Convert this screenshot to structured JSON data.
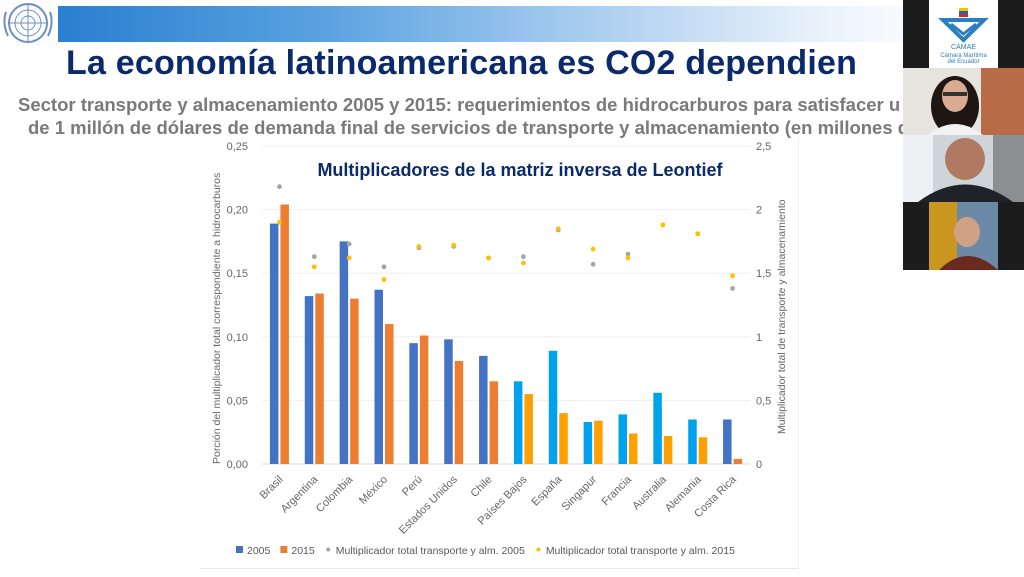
{
  "slide": {
    "title": "La economía latinoamericana es CO2 dependien",
    "subtitle_line1": "Sector transporte y almacenamiento 2005 y 2015: requerimientos de hidrocarburos para satisfacer u",
    "subtitle_line2": "de 1 millón de dólares de demanda final de servicios de transporte y almacenamiento (en millones d",
    "logo_icon": "un-emblem-icon",
    "colors": {
      "title": "#0b2a6b",
      "subtitle": "#7a7a7a",
      "banner": "#2a7fd0"
    }
  },
  "video_panel": {
    "logo_tile": {
      "name": "CAMAE",
      "line1": "Cámara Marítima",
      "line2": "del Ecuador"
    },
    "participants": [
      "participant-1",
      "participant-2",
      "participant-3"
    ]
  },
  "chart_data": {
    "type": "bar",
    "title": "Multiplicadores de la matriz inversa de Leontief",
    "xlabel": "",
    "ylabel": "Porción del multiplicador total correspondiente a hidrocarburos",
    "y2label": "Multiplicador total de transporte y almacenamiento",
    "ylim": [
      0,
      0.25
    ],
    "y2lim": [
      0,
      2.5
    ],
    "yticks": [
      "0,00",
      "0,05",
      "0,10",
      "0,15",
      "0,20",
      "0,25"
    ],
    "y2ticks": [
      "0",
      "0,5",
      "1",
      "1,5",
      "2",
      "2,5"
    ],
    "grid": true,
    "legend_position": "bottom",
    "categories": [
      "Brasil",
      "Argentina",
      "Colombia",
      "México",
      "Perú",
      "Estados Unidos",
      "Chile",
      "Países Bajos",
      "España",
      "Singapur",
      "Francia",
      "Australia",
      "Alemania",
      "Costa Rica"
    ],
    "series": [
      {
        "name": "2005",
        "kind": "bar",
        "axis": "left",
        "color": "#4472c4",
        "alt_color": "#00a2ed",
        "values": [
          0.189,
          0.132,
          0.175,
          0.137,
          0.095,
          0.098,
          0.085,
          0.065,
          0.089,
          0.033,
          0.039,
          0.056,
          0.035,
          0.035
        ]
      },
      {
        "name": "2015",
        "kind": "bar",
        "axis": "left",
        "color": "#ed7d31",
        "alt_color": "#ffa000",
        "values": [
          0.204,
          0.134,
          0.13,
          0.11,
          0.101,
          0.081,
          0.065,
          0.055,
          0.04,
          0.034,
          0.024,
          0.022,
          0.021,
          0.004
        ]
      },
      {
        "name": "Multiplicador total transporte y alm. 2005",
        "kind": "dot",
        "axis": "right",
        "color": "#a5a5a5",
        "values": [
          2.18,
          1.63,
          1.73,
          1.55,
          1.7,
          1.71,
          1.62,
          1.63,
          1.84,
          1.57,
          1.65,
          1.88,
          1.81,
          1.38
        ]
      },
      {
        "name": "Multiplicador total transporte y alm. 2015",
        "kind": "dot",
        "axis": "right",
        "color": "#ffc000",
        "values": [
          1.9,
          1.55,
          1.62,
          1.45,
          1.71,
          1.72,
          1.62,
          1.58,
          1.85,
          1.69,
          1.62,
          1.88,
          1.81,
          1.48
        ]
      }
    ],
    "alt_color_categories": [
      "Países Bajos",
      "España",
      "Singapur",
      "Francia",
      "Australia",
      "Alemania"
    ]
  }
}
